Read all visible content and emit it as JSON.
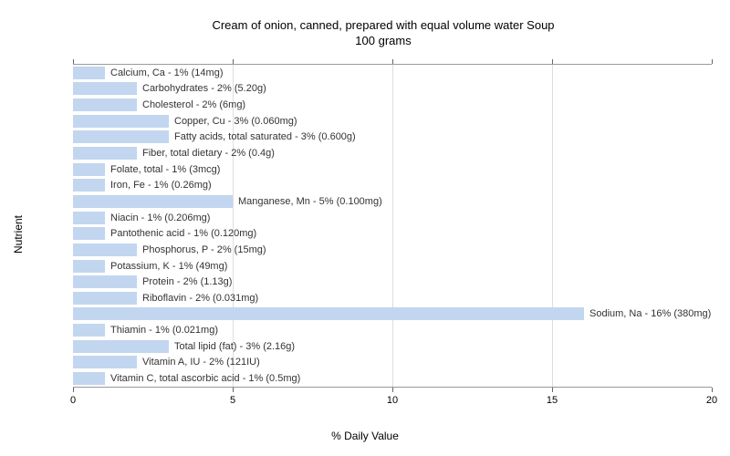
{
  "chart": {
    "type": "bar",
    "title": "Cream of onion, canned, prepared with equal volume water Soup",
    "subtitle": "100 grams",
    "x_label": "% Daily Value",
    "y_label": "Nutrient",
    "xlim": [
      0,
      20
    ],
    "xticks": [
      0,
      5,
      10,
      15,
      20
    ],
    "bar_color": "#c2d6f0",
    "grid_color": "#dddddd",
    "background_color": "#ffffff",
    "title_fontsize": 13,
    "label_fontsize": 12,
    "tick_fontsize": 11,
    "bar_label_fontsize": 11,
    "items": [
      {
        "label": "Calcium, Ca - 1% (14mg)",
        "value": 1
      },
      {
        "label": "Carbohydrates - 2% (5.20g)",
        "value": 2
      },
      {
        "label": "Cholesterol - 2% (6mg)",
        "value": 2
      },
      {
        "label": "Copper, Cu - 3% (0.060mg)",
        "value": 3
      },
      {
        "label": "Fatty acids, total saturated - 3% (0.600g)",
        "value": 3
      },
      {
        "label": "Fiber, total dietary - 2% (0.4g)",
        "value": 2
      },
      {
        "label": "Folate, total - 1% (3mcg)",
        "value": 1
      },
      {
        "label": "Iron, Fe - 1% (0.26mg)",
        "value": 1
      },
      {
        "label": "Manganese, Mn - 5% (0.100mg)",
        "value": 5
      },
      {
        "label": "Niacin - 1% (0.206mg)",
        "value": 1
      },
      {
        "label": "Pantothenic acid - 1% (0.120mg)",
        "value": 1
      },
      {
        "label": "Phosphorus, P - 2% (15mg)",
        "value": 2
      },
      {
        "label": "Potassium, K - 1% (49mg)",
        "value": 1
      },
      {
        "label": "Protein - 2% (1.13g)",
        "value": 2
      },
      {
        "label": "Riboflavin - 2% (0.031mg)",
        "value": 2
      },
      {
        "label": "Sodium, Na - 16% (380mg)",
        "value": 16
      },
      {
        "label": "Thiamin - 1% (0.021mg)",
        "value": 1
      },
      {
        "label": "Total lipid (fat) - 3% (2.16g)",
        "value": 3
      },
      {
        "label": "Vitamin A, IU - 2% (121IU)",
        "value": 2
      },
      {
        "label": "Vitamin C, total ascorbic acid - 1% (0.5mg)",
        "value": 1
      }
    ]
  }
}
